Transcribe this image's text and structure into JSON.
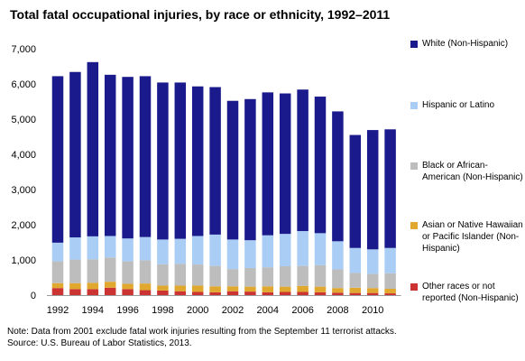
{
  "chart_data": {
    "type": "bar",
    "stacked": true,
    "title": "Total fatal occupational injuries, by race or ethnicity, 1992–2011",
    "xlabel": "",
    "ylabel": "",
    "ylim": [
      0,
      7000
    ],
    "yticks": [
      "0",
      "1,000",
      "2,000",
      "3,000",
      "4,000",
      "5,000",
      "6,000",
      "7,000"
    ],
    "categories": [
      "1992",
      "1993",
      "1994",
      "1995",
      "1996",
      "1997",
      "1998",
      "1999",
      "2000",
      "2001",
      "2002",
      "2003",
      "2004",
      "2005",
      "2006",
      "2007",
      "2008",
      "2009",
      "2010",
      "2011"
    ],
    "xtick_labels": [
      "1992",
      "",
      "1994",
      "",
      "1996",
      "",
      "1998",
      "",
      "2000",
      "",
      "2002",
      "",
      "2004",
      "",
      "2006",
      "",
      "2008",
      "",
      "2010",
      ""
    ],
    "grid": false,
    "legend_position": "right",
    "series": [
      {
        "name": "Other races or not reported (Non-Hispanic)",
        "color": "#cc3333",
        "values": [
          200,
          170,
          170,
          210,
          170,
          140,
          130,
          110,
          90,
          80,
          110,
          100,
          80,
          90,
          90,
          80,
          70,
          60,
          60,
          50
        ]
      },
      {
        "name": "Asian or Native Hawaiian or Pacific Islander (Non-Hispanic)",
        "color": "#e0a82e",
        "values": [
          140,
          170,
          180,
          170,
          150,
          190,
          140,
          160,
          180,
          170,
          140,
          140,
          170,
          150,
          170,
          160,
          130,
          150,
          140,
          130
        ]
      },
      {
        "name": "Black or African-American (Non-Hispanic)",
        "color": "#bdbdbd",
        "values": [
          620,
          670,
          670,
          690,
          640,
          660,
          610,
          620,
          600,
          580,
          490,
          530,
          540,
          580,
          570,
          610,
          530,
          420,
          400,
          440
        ]
      },
      {
        "name": "Hispanic or Latino",
        "color": "#a9cdf4",
        "values": [
          530,
          630,
          650,
          610,
          650,
          660,
          700,
          710,
          810,
          890,
          840,
          790,
          910,
          920,
          990,
          910,
          800,
          710,
          700,
          720
        ]
      },
      {
        "name": "White (Non-Hispanic)",
        "color": "#1a1a8c",
        "values": [
          4730,
          4700,
          4950,
          4580,
          4590,
          4570,
          4460,
          4440,
          4250,
          4190,
          3940,
          4010,
          4060,
          3990,
          4020,
          3880,
          3690,
          3210,
          3390,
          3370
        ]
      }
    ]
  },
  "legend": [
    {
      "label": "White (Non-Hispanic)",
      "color": "#1a1a8c"
    },
    {
      "label": "Hispanic or Latino",
      "color": "#a9cdf4"
    },
    {
      "label": "Black or African-American (Non-Hispanic)",
      "color": "#bdbdbd"
    },
    {
      "label": "Asian or Native Hawaiian or Pacific Islander (Non-Hispanic)",
      "color": "#e0a82e"
    },
    {
      "label": "Other races or not reported (Non-Hispanic)",
      "color": "#cc3333"
    }
  ],
  "note": {
    "line1": "Note: Data from 2001 exclude fatal work injuries resulting from the September 11 terrorist attacks.",
    "line2": "Source: U.S. Bureau of Labor Statistics, 2013."
  }
}
